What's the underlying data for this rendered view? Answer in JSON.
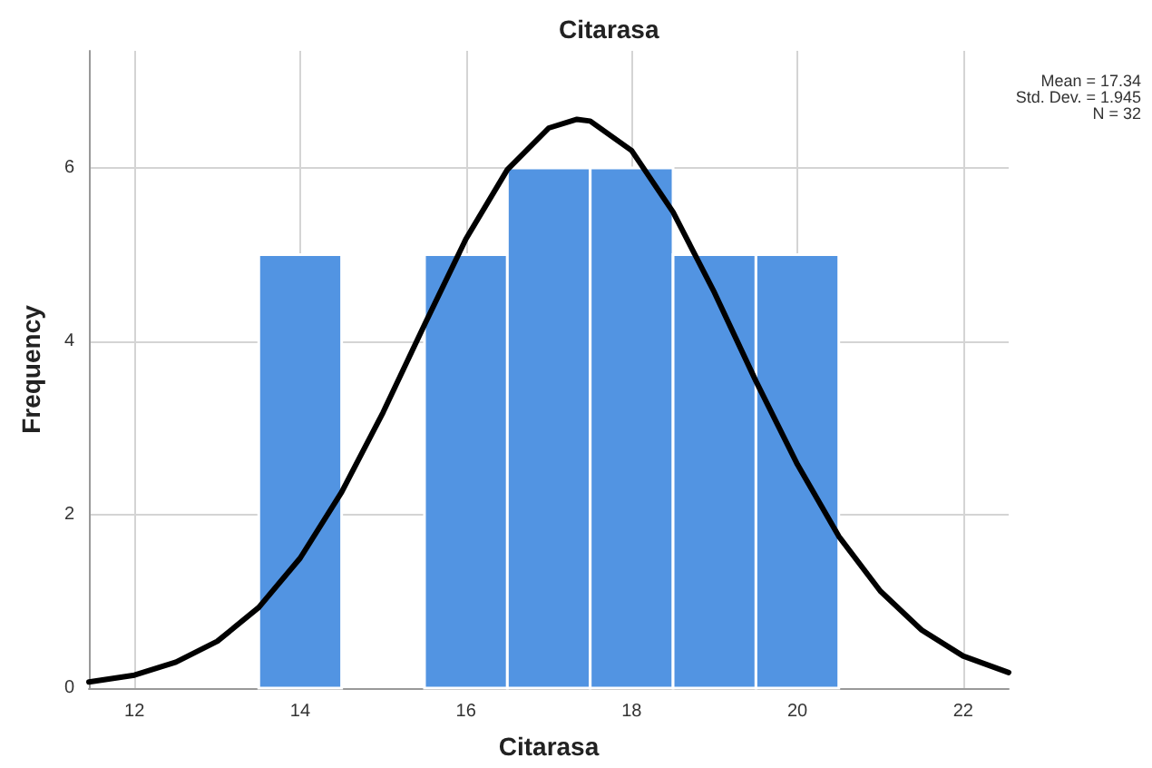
{
  "chart_data": {
    "type": "histogram",
    "title": "Citarasa",
    "xlabel": "Citarasa",
    "ylabel": "Frequency",
    "annotations": [
      "Mean = 17.34",
      "Std. Dev. = 1.945",
      "N = 32"
    ],
    "bins": [
      13.5,
      14.5,
      15.5,
      16.5,
      17.5,
      18.5,
      19.5,
      20.5
    ],
    "values": [
      5,
      0,
      5,
      6,
      6,
      5,
      5
    ],
    "color": "#5294e2",
    "series": [
      {
        "type": "line",
        "color": "#000000",
        "marker": "none",
        "x": [
          11.45,
          12,
          12.5,
          13,
          13.5,
          14,
          14.5,
          15,
          15.5,
          16,
          16.5,
          17,
          17.34,
          17.5,
          18,
          18.5,
          19,
          19.5,
          20,
          20.5,
          21,
          21.5,
          22,
          22.55
        ],
        "values": [
          0.07,
          0.15,
          0.3,
          0.54,
          0.93,
          1.5,
          2.26,
          3.18,
          4.19,
          5.18,
          5.98,
          6.46,
          6.56,
          6.54,
          6.2,
          5.49,
          4.56,
          3.54,
          2.58,
          1.75,
          1.12,
          0.67,
          0.37,
          0.18
        ]
      }
    ],
    "xlim": [
      11.45,
      22.55
    ],
    "xticks": [
      12,
      14,
      16,
      18,
      20,
      22
    ],
    "ylim": [
      0,
      7.35
    ],
    "yticks": [
      0,
      2,
      4,
      6
    ],
    "grid": true
  }
}
